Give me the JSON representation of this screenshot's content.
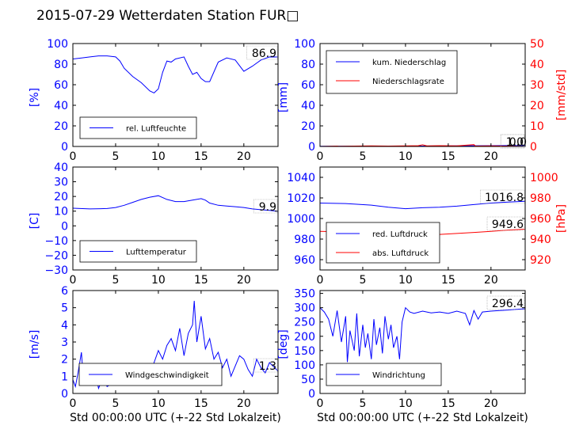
{
  "figure": {
    "title": "2015-07-29 Wetterdaten Station FUR□"
  },
  "colors": {
    "primary": "#0000ff",
    "secondary": "#ff0000",
    "axis": "#000000"
  },
  "chart_data": [
    {
      "id": "humidity",
      "type": "line",
      "xlabel": "",
      "ylabel": "[%]",
      "xlim": [
        0,
        24
      ],
      "ylim": [
        0,
        100
      ],
      "xticks": [
        "0",
        "5",
        "10",
        "15",
        "20"
      ],
      "yticks": [
        "0",
        "20",
        "40",
        "60",
        "80",
        "100"
      ],
      "last_value": "86.9",
      "legend_position": "lower-left",
      "series": [
        {
          "name": "rel. Luftfeuchte",
          "color": "#0000ff",
          "axis": "left",
          "x": [
            0,
            1,
            2,
            3,
            4,
            5,
            5.5,
            6,
            7,
            8,
            9,
            9.5,
            10,
            10.5,
            11,
            11.5,
            12,
            13,
            13.5,
            14,
            14.5,
            15,
            15.5,
            16,
            17,
            18,
            19,
            20,
            21,
            22,
            23,
            24
          ],
          "y": [
            85,
            86,
            87,
            88,
            88,
            87,
            83,
            76,
            68,
            62,
            54,
            52,
            56,
            72,
            83,
            82,
            85,
            87,
            78,
            70,
            72,
            66,
            63,
            63,
            82,
            86,
            84,
            73,
            78,
            84,
            87,
            86.9
          ]
        }
      ]
    },
    {
      "id": "precipitation",
      "type": "line",
      "xlabel": "",
      "ylabel": "[mm]",
      "ylabel_right": "[mm/std]",
      "xlim": [
        0,
        24
      ],
      "ylim": [
        0,
        100
      ],
      "ylim_right": [
        0,
        50
      ],
      "xticks": [
        "0",
        "5",
        "10",
        "15",
        "20"
      ],
      "yticks": [
        "0",
        "20",
        "40",
        "60",
        "80",
        "100"
      ],
      "yticks_right": [
        "0",
        "10",
        "20",
        "30",
        "40",
        "50"
      ],
      "last_value": "1.0",
      "last_value_2": "0.0",
      "legend_position": "upper-left",
      "series": [
        {
          "name": "kum. Niederschlag",
          "color": "#0000ff",
          "axis": "left",
          "x": [
            0,
            12,
            18,
            24
          ],
          "y": [
            0.2,
            0.4,
            0.7,
            1.0
          ]
        },
        {
          "name": "Niederschlagsrate",
          "color": "#ff0000",
          "axis": "right",
          "x": [
            0,
            2,
            2.2,
            4,
            6,
            8,
            10,
            11.5,
            12,
            12.5,
            14,
            16,
            18,
            18.2,
            20,
            24
          ],
          "y": [
            0,
            0.2,
            0.1,
            0.2,
            0.3,
            0.2,
            0.3,
            0.4,
            0.8,
            0.3,
            0.4,
            0.3,
            0.9,
            0.2,
            0.3,
            0
          ]
        }
      ]
    },
    {
      "id": "temperature",
      "type": "line",
      "xlabel": "",
      "ylabel": "[C]",
      "xlim": [
        0,
        24
      ],
      "ylim": [
        -30,
        40
      ],
      "xticks": [
        "0",
        "5",
        "10",
        "15",
        "20"
      ],
      "yticks": [
        "−30",
        "−20",
        "−10",
        "0",
        "10",
        "20",
        "30",
        "40"
      ],
      "last_value": "9.9",
      "legend_position": "lower-left",
      "series": [
        {
          "name": "Lufttemperatur",
          "color": "#0000ff",
          "axis": "left",
          "x": [
            0,
            2,
            4,
            5,
            6,
            7,
            8,
            9,
            10,
            11,
            12,
            13,
            14,
            15,
            15.5,
            16,
            17,
            18,
            19,
            20,
            21,
            22,
            23,
            24
          ],
          "y": [
            12,
            11.5,
            11.8,
            12.5,
            14,
            16,
            18,
            19.5,
            20.5,
            18,
            16.5,
            16.5,
            17.5,
            18.5,
            17.5,
            15.5,
            14,
            13.5,
            13,
            12.5,
            11.5,
            11,
            10.5,
            9.9
          ]
        }
      ]
    },
    {
      "id": "pressure",
      "type": "line",
      "xlabel": "",
      "ylabel": "",
      "ylabel_right": "[hPa]",
      "xlim": [
        0,
        24
      ],
      "ylim": [
        950,
        1050
      ],
      "ylim_right": [
        910,
        1010
      ],
      "xticks": [
        "0",
        "5",
        "10",
        "15",
        "20"
      ],
      "yticks": [
        "960",
        "980",
        "1000",
        "1020",
        "1040"
      ],
      "yticks_right": [
        "920",
        "940",
        "960",
        "980",
        "1000"
      ],
      "last_value": "1016.8",
      "last_value_2": "949.6",
      "legend_position": "lower-left",
      "series": [
        {
          "name": "red. Luftdruck",
          "color": "#0000ff",
          "axis": "left",
          "x": [
            0,
            3,
            6,
            8,
            10,
            12,
            14,
            16,
            18,
            20,
            22,
            24
          ],
          "y": [
            1015,
            1014.5,
            1013,
            1011,
            1009.5,
            1010.5,
            1011,
            1012,
            1013.5,
            1015,
            1016,
            1016.8
          ]
        },
        {
          "name": "abs. Luftdruck",
          "color": "#ff0000",
          "axis": "right",
          "x": [
            0,
            3,
            6,
            8,
            10,
            12,
            14,
            16,
            18,
            20,
            22,
            24
          ],
          "y": [
            947.5,
            947,
            946,
            945,
            944,
            944.5,
            944.5,
            945.5,
            946.5,
            947.5,
            948.8,
            949.6
          ]
        }
      ]
    },
    {
      "id": "wind-speed",
      "type": "line",
      "xlabel": "Std 00:00:00 UTC (+-22 Std Lokalzeit)",
      "ylabel": "[m/s]",
      "xlim": [
        0,
        24
      ],
      "ylim": [
        0,
        6
      ],
      "xticks": [
        "0",
        "5",
        "10",
        "15",
        "20"
      ],
      "yticks": [
        "0",
        "1",
        "2",
        "3",
        "4",
        "5",
        "6"
      ],
      "last_value": "1.3",
      "legend_position": "lower-center",
      "series": [
        {
          "name": "Windgeschwindigkeit",
          "color": "#0000ff",
          "axis": "left",
          "x": [
            0,
            0.3,
            0.6,
            1,
            1.2,
            1.5,
            2,
            2.5,
            3,
            3.5,
            4,
            5,
            6,
            7,
            8,
            9,
            9.5,
            10,
            10.5,
            11,
            11.5,
            12,
            12.5,
            13,
            13.5,
            14,
            14.2,
            14.5,
            15,
            15.5,
            16,
            16.5,
            17,
            17.5,
            18,
            18.5,
            19,
            19.5,
            20,
            20.5,
            21,
            21.5,
            22,
            22.5,
            23,
            24
          ],
          "y": [
            0.8,
            0.4,
            1.2,
            2.4,
            1.0,
            0.6,
            0.5,
            1.5,
            0.3,
            0.9,
            0.4,
            0.7,
            0.9,
            0.6,
            1.2,
            1.0,
            1.8,
            2.5,
            2.0,
            2.8,
            3.2,
            2.5,
            3.8,
            2.2,
            3.5,
            4.0,
            5.4,
            3.0,
            4.5,
            2.6,
            3.2,
            2.0,
            2.4,
            1.5,
            2.0,
            1.0,
            1.6,
            2.2,
            2.0,
            1.4,
            1.0,
            2.0,
            1.5,
            1.2,
            1.8,
            1.3
          ]
        }
      ]
    },
    {
      "id": "wind-direction",
      "type": "line",
      "xlabel": "Std 00:00:00 UTC (+-22 Std Lokalzeit)",
      "ylabel": "[deg]",
      "xlim": [
        0,
        24
      ],
      "ylim": [
        0,
        360
      ],
      "xticks": [
        "0",
        "5",
        "10",
        "15",
        "20"
      ],
      "yticks": [
        "0",
        "50",
        "100",
        "150",
        "200",
        "250",
        "300",
        "350"
      ],
      "last_value": "296.4",
      "legend_position": "lower-left",
      "series": [
        {
          "name": "Windrichtung",
          "color": "#0000ff",
          "axis": "left",
          "x": [
            0,
            0.5,
            1,
            1.5,
            2,
            2.5,
            3,
            3.2,
            3.5,
            4,
            4.3,
            4.6,
            5,
            5.3,
            5.6,
            6,
            6.3,
            6.6,
            7,
            7.3,
            7.6,
            8,
            8.3,
            8.6,
            9,
            9.3,
            9.6,
            10,
            10.5,
            11,
            12,
            13,
            14,
            15,
            16,
            17,
            17.5,
            18,
            18.5,
            19,
            20,
            21,
            22,
            23,
            24
          ],
          "y": [
            300,
            285,
            260,
            200,
            290,
            180,
            270,
            110,
            220,
            150,
            280,
            130,
            240,
            160,
            210,
            120,
            260,
            170,
            230,
            140,
            270,
            190,
            240,
            160,
            200,
            120,
            250,
            300,
            285,
            280,
            288,
            282,
            285,
            280,
            288,
            280,
            240,
            290,
            260,
            285,
            288,
            290,
            292,
            294,
            296.4
          ]
        }
      ]
    }
  ]
}
